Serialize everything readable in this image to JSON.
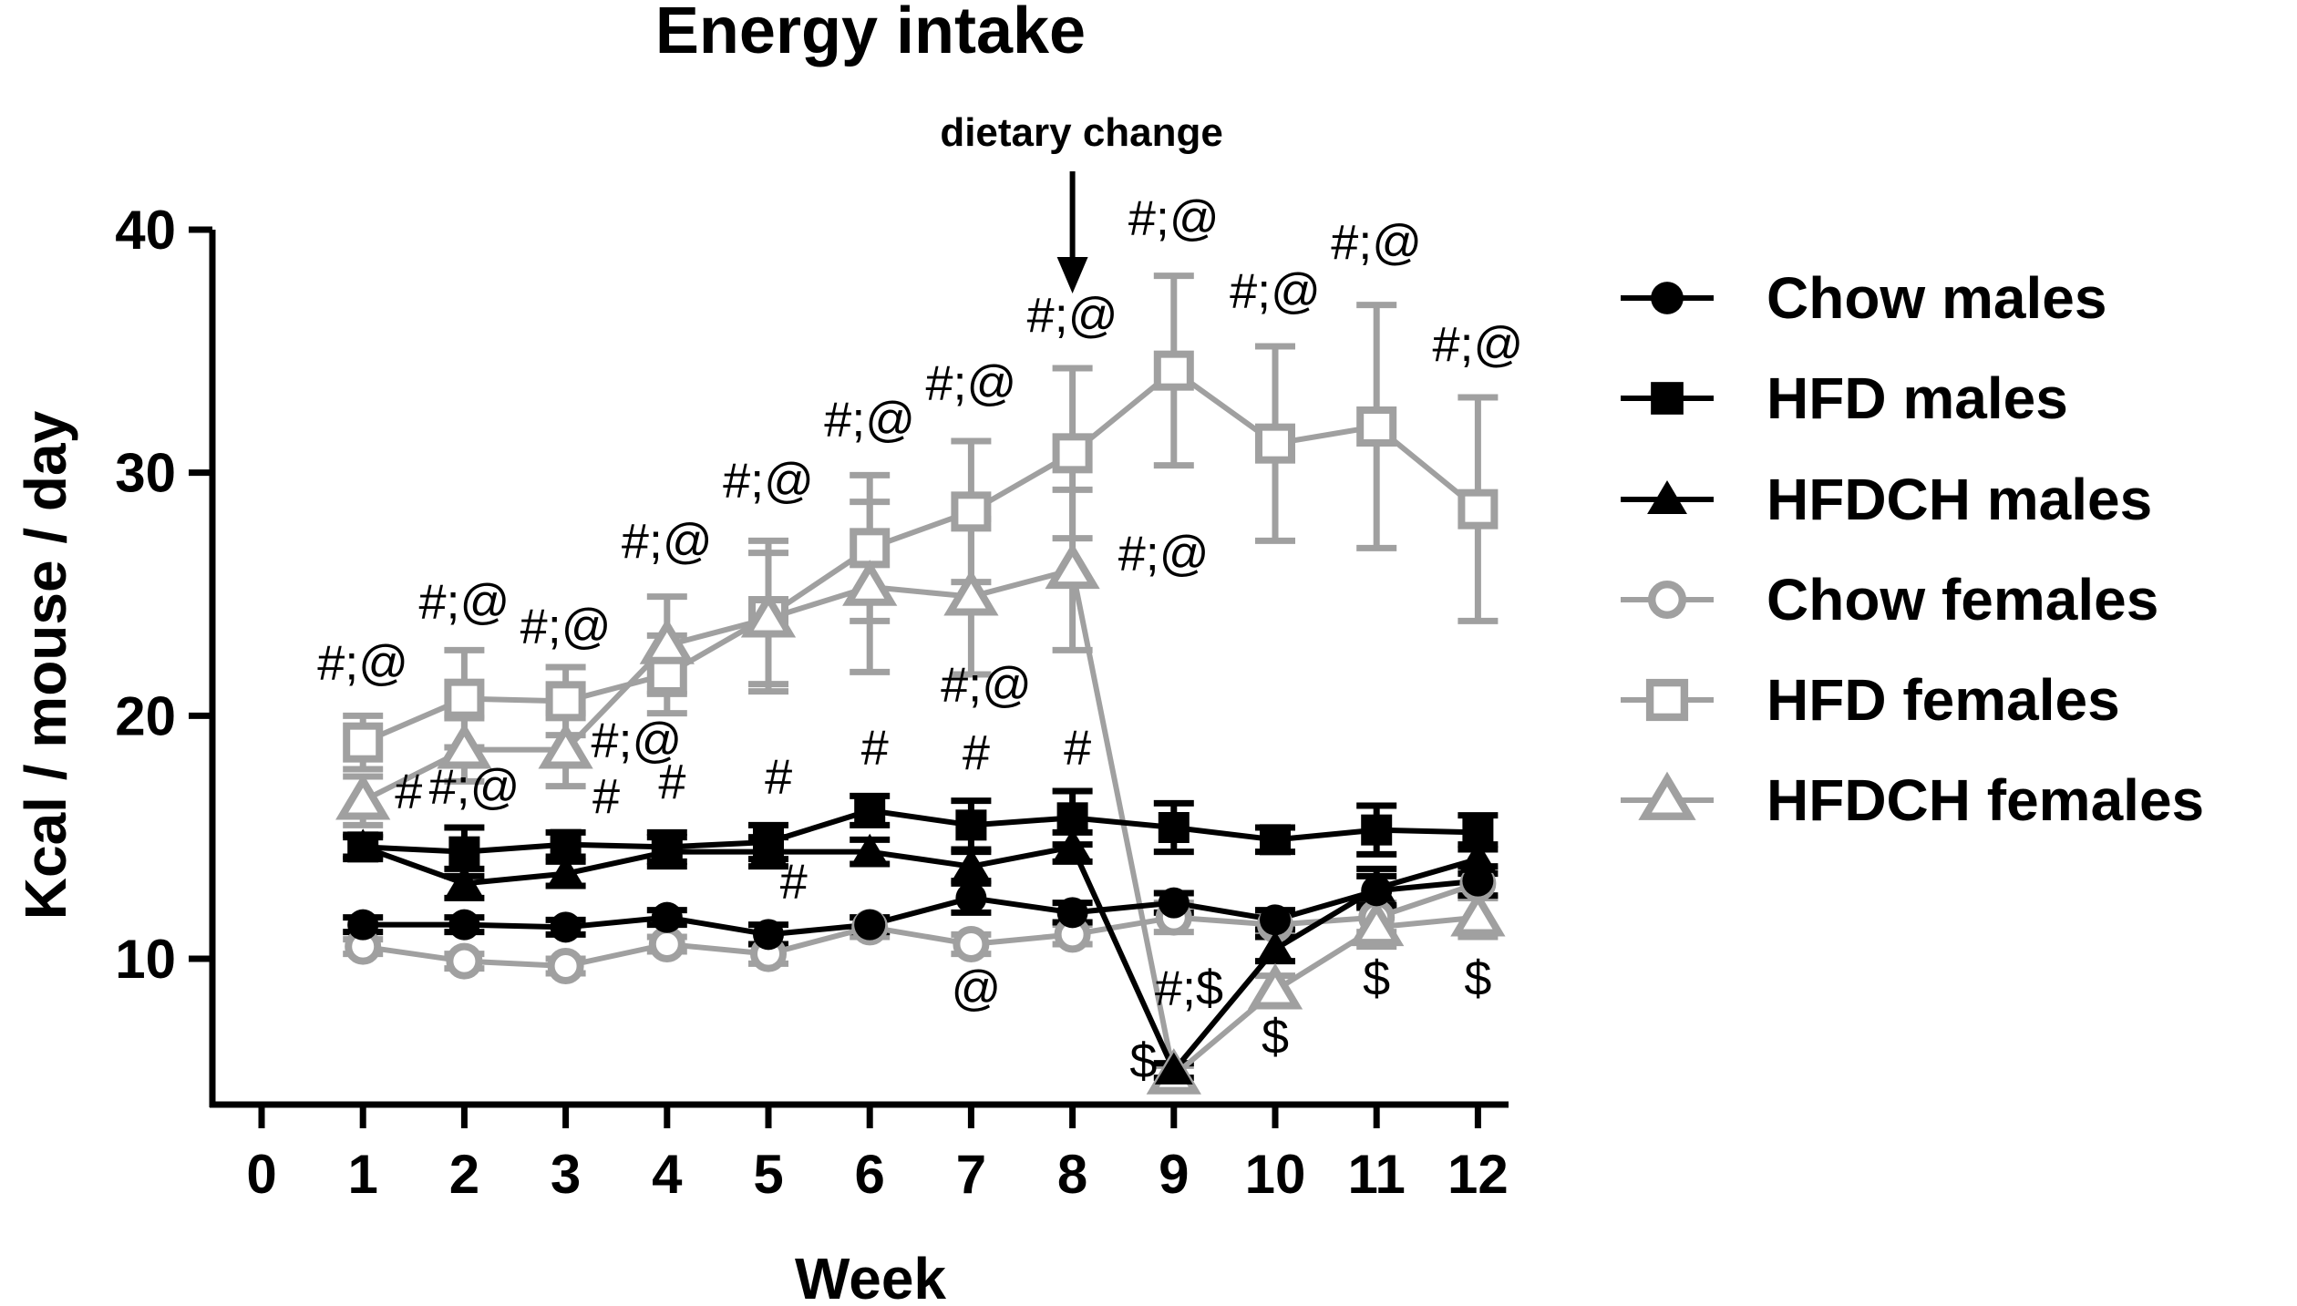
{
  "chart_data": {
    "type": "line",
    "title": "Energy intake",
    "xlabel": "Week",
    "ylabel": "Kcal / mouse / day",
    "xlim": [
      0,
      12
    ],
    "ylim": [
      4,
      40
    ],
    "x_ticks": [
      0,
      1,
      2,
      3,
      4,
      5,
      6,
      7,
      8,
      9,
      10,
      11,
      12
    ],
    "y_ticks": [
      10,
      20,
      30,
      40
    ],
    "grid": false,
    "legend_position": "right",
    "x": [
      1,
      2,
      3,
      4,
      5,
      6,
      7,
      8,
      9,
      10,
      11,
      12
    ],
    "series": [
      {
        "name": "Chow males",
        "color": "#000000",
        "marker": "circle",
        "fill": "filled",
        "values": [
          11.4,
          11.4,
          11.3,
          11.7,
          11.0,
          11.4,
          12.5,
          11.9,
          12.3,
          11.6,
          12.8,
          13.2
        ],
        "errors": [
          0.3,
          0.3,
          0.3,
          0.3,
          0.4,
          0.3,
          0.6,
          0.4,
          0.4,
          0.4,
          0.6,
          0.6
        ]
      },
      {
        "name": "HFD males",
        "color": "#000000",
        "marker": "square",
        "fill": "filled",
        "values": [
          14.6,
          14.4,
          14.7,
          14.6,
          14.8,
          16.1,
          15.5,
          15.8,
          15.4,
          14.9,
          15.3,
          15.2
        ],
        "errors": [
          0.5,
          1.0,
          0.5,
          0.6,
          0.7,
          0.6,
          1.0,
          1.1,
          1.0,
          0.5,
          1.0,
          0.7
        ]
      },
      {
        "name": "HFDCH males",
        "color": "#000000",
        "marker": "triangle",
        "fill": "filled",
        "values": [
          14.6,
          13.1,
          13.5,
          14.4,
          14.4,
          14.4,
          13.8,
          14.6,
          5.4,
          10.4,
          12.9,
          14.1
        ],
        "errors": [
          0.4,
          0.6,
          0.5,
          0.6,
          0.6,
          0.5,
          0.6,
          0.6,
          0.3,
          0.5,
          0.8,
          0.6
        ]
      },
      {
        "name": "Chow females",
        "color": "#a0a0a0",
        "marker": "circle",
        "fill": "open",
        "values": [
          10.5,
          9.9,
          9.7,
          10.6,
          10.2,
          11.3,
          10.6,
          11.0,
          11.7,
          11.4,
          11.7,
          13.1
        ],
        "errors": [
          0.3,
          0.3,
          0.3,
          0.3,
          0.4,
          0.4,
          0.4,
          0.4,
          0.6,
          0.5,
          0.6,
          0.6
        ]
      },
      {
        "name": "HFD females",
        "color": "#a0a0a0",
        "marker": "square",
        "fill": "open",
        "values": [
          18.9,
          20.7,
          20.6,
          21.7,
          24.1,
          26.9,
          28.4,
          30.8,
          34.2,
          31.2,
          31.9,
          28.5
        ],
        "errors": [
          1.1,
          2.0,
          1.4,
          1.6,
          3.1,
          3.0,
          2.9,
          3.5,
          3.9,
          4.0,
          5.0,
          4.6
        ]
      },
      {
        "name": "HFDCH females",
        "color": "#a0a0a0",
        "marker": "triangle",
        "fill": "open",
        "values": [
          16.5,
          18.6,
          18.6,
          22.9,
          24.0,
          25.3,
          24.9,
          26.0,
          5.2,
          8.7,
          11.3,
          11.7
        ],
        "errors": [
          1.0,
          1.3,
          1.5,
          2.0,
          2.7,
          3.5,
          3.2,
          3.3,
          0.4,
          0.6,
          0.8,
          0.8
        ]
      }
    ],
    "annotations": [
      {
        "text": "dietary change",
        "x": 8,
        "kind": "arrow"
      },
      {
        "text": "#;@",
        "x": 1,
        "y": 21.5
      },
      {
        "text": "#;@",
        "x": 2,
        "y": 24.0
      },
      {
        "text": "#;@",
        "x": 3,
        "y": 23.0
      },
      {
        "text": "#;@",
        "x": 4,
        "y": 26.5
      },
      {
        "text": "#;@",
        "x": 5,
        "y": 29.0
      },
      {
        "text": "#;@",
        "x": 6,
        "y": 31.5
      },
      {
        "text": "#;@",
        "x": 7,
        "y": 33.0
      },
      {
        "text": "#;@",
        "x": 8,
        "y": 35.8
      },
      {
        "text": "#;@",
        "x": 9,
        "y": 39.8
      },
      {
        "text": "#;@",
        "x": 10,
        "y": 36.8
      },
      {
        "text": "#;@",
        "x": 11,
        "y": 38.8
      },
      {
        "text": "#;@",
        "x": 12,
        "y": 34.6
      },
      {
        "text": "#;@",
        "x": 8.9,
        "y": 26.0
      },
      {
        "text": "#;@",
        "x": 3.7,
        "y": 18.3
      },
      {
        "text": "#;@",
        "x": 7.15,
        "y": 20.6
      },
      {
        "text": "#",
        "x": 1.45,
        "y": 16.2
      },
      {
        "text": "#;@",
        "x": 2.1,
        "y": 16.4
      },
      {
        "text": "#",
        "x": 3.4,
        "y": 16.0
      },
      {
        "text": "#",
        "x": 4.05,
        "y": 16.6
      },
      {
        "text": "#",
        "x": 5.1,
        "y": 16.8
      },
      {
        "text": "#",
        "x": 6.05,
        "y": 18.0
      },
      {
        "text": "#",
        "x": 7.05,
        "y": 17.8
      },
      {
        "text": "#",
        "x": 8.05,
        "y": 18.0
      },
      {
        "text": "#",
        "x": 5.25,
        "y": 12.5
      },
      {
        "text": "@",
        "x": 7.05,
        "y": 8.1
      },
      {
        "text": "#;$",
        "x": 9.15,
        "y": 8.1
      },
      {
        "text": "$",
        "x": 8.7,
        "y": 5.1
      },
      {
        "text": "$",
        "x": 10.0,
        "y": 6.1
      },
      {
        "text": "$",
        "x": 11.0,
        "y": 8.5
      },
      {
        "text": "$",
        "x": 12.0,
        "y": 8.5
      }
    ]
  }
}
